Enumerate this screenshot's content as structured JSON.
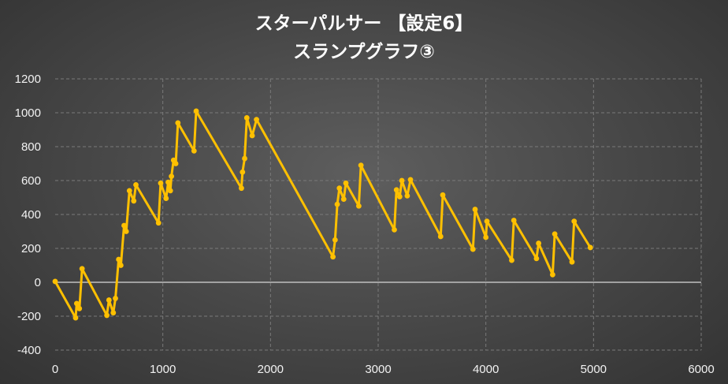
{
  "chart_data": {
    "type": "line",
    "title": "スターパルサー 【設定6】",
    "subtitle": "スランプグラフ③",
    "xlim": [
      0,
      6000
    ],
    "ylim": [
      -400,
      1200
    ],
    "xticks": [
      0,
      1000,
      2000,
      3000,
      4000,
      5000,
      6000
    ],
    "yticks": [
      -400,
      -200,
      0,
      200,
      400,
      600,
      800,
      1000,
      1200
    ],
    "grid": true,
    "legend": "none",
    "colors": {
      "line": "#ffc000",
      "marker": "#ffc000",
      "grid": "#7a7a7a",
      "zero_line": "#bfbfbf",
      "tick_label": "#f2f2f2"
    },
    "series": [
      {
        "points": [
          [
            0,
            5
          ],
          [
            190,
            -210
          ],
          [
            200,
            -125
          ],
          [
            225,
            -155
          ],
          [
            250,
            80
          ],
          [
            480,
            -195
          ],
          [
            500,
            -105
          ],
          [
            540,
            -180
          ],
          [
            560,
            -95
          ],
          [
            590,
            135
          ],
          [
            610,
            100
          ],
          [
            640,
            335
          ],
          [
            660,
            300
          ],
          [
            690,
            540
          ],
          [
            730,
            480
          ],
          [
            750,
            575
          ],
          [
            960,
            350
          ],
          [
            980,
            585
          ],
          [
            1030,
            495
          ],
          [
            1050,
            590
          ],
          [
            1070,
            540
          ],
          [
            1080,
            625
          ],
          [
            1100,
            720
          ],
          [
            1120,
            700
          ],
          [
            1140,
            940
          ],
          [
            1290,
            775
          ],
          [
            1310,
            1010
          ],
          [
            1730,
            555
          ],
          [
            1740,
            650
          ],
          [
            1760,
            730
          ],
          [
            1780,
            970
          ],
          [
            1830,
            865
          ],
          [
            1870,
            960
          ],
          [
            2580,
            150
          ],
          [
            2600,
            250
          ],
          [
            2620,
            460
          ],
          [
            2640,
            555
          ],
          [
            2680,
            490
          ],
          [
            2700,
            585
          ],
          [
            2820,
            450
          ],
          [
            2840,
            690
          ],
          [
            3150,
            310
          ],
          [
            3170,
            545
          ],
          [
            3200,
            505
          ],
          [
            3220,
            600
          ],
          [
            3270,
            510
          ],
          [
            3300,
            605
          ],
          [
            3580,
            270
          ],
          [
            3600,
            515
          ],
          [
            3880,
            195
          ],
          [
            3900,
            430
          ],
          [
            4000,
            265
          ],
          [
            4010,
            360
          ],
          [
            4240,
            130
          ],
          [
            4260,
            365
          ],
          [
            4470,
            140
          ],
          [
            4490,
            230
          ],
          [
            4620,
            45
          ],
          [
            4640,
            285
          ],
          [
            4800,
            120
          ],
          [
            4820,
            360
          ],
          [
            4970,
            205
          ]
        ]
      }
    ]
  }
}
